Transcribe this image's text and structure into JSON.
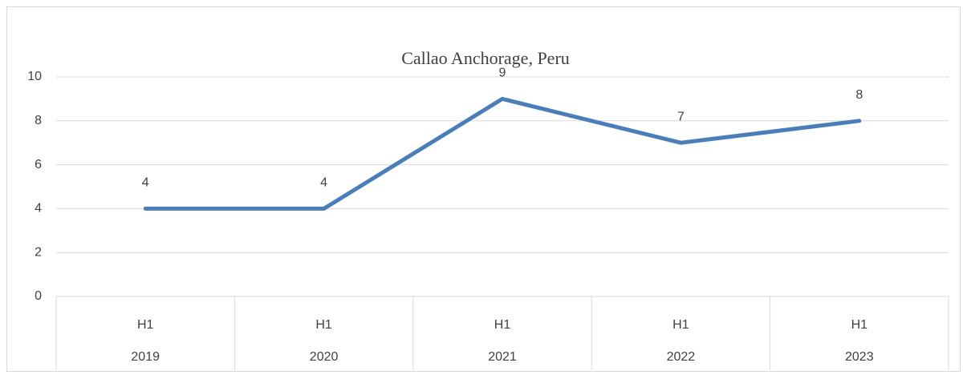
{
  "chart_data": {
    "type": "line",
    "title": "Callao Anchorage, Peru",
    "categories": [
      "H1",
      "H1",
      "H1",
      "H1",
      "H1"
    ],
    "category_groups": [
      "2019",
      "2020",
      "2021",
      "2022",
      "2023"
    ],
    "values": [
      4,
      4,
      9,
      7,
      8
    ],
    "color": "#4a7ebb",
    "ylim": [
      0,
      10
    ],
    "yticks": [
      0,
      2,
      4,
      6,
      8,
      10
    ],
    "grid": true,
    "data_labels": true
  }
}
